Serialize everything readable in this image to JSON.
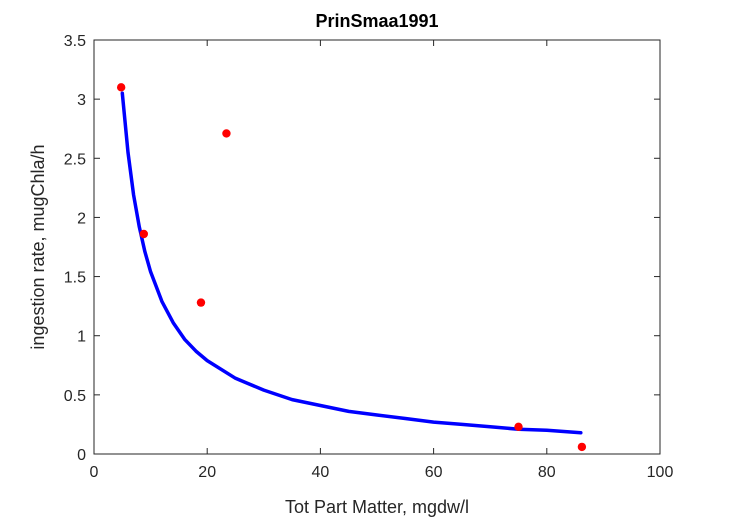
{
  "chart_data": {
    "type": "scatter",
    "title": "PrinSmaa1991",
    "xlabel": "Tot Part Matter, mgdw/l",
    "ylabel": "ingestion rate, mugChla/h",
    "xlim": [
      0,
      100
    ],
    "ylim": [
      0,
      3.5
    ],
    "xticks": [
      0,
      20,
      40,
      60,
      80,
      100
    ],
    "yticks": [
      0,
      0.5,
      1,
      1.5,
      2,
      2.5,
      3,
      3.5
    ],
    "xtick_labels": [
      "0",
      "20",
      "40",
      "60",
      "80",
      "100"
    ],
    "ytick_labels": [
      "0",
      "0.5",
      "1",
      "1.5",
      "2",
      "2.5",
      "3",
      "3.5"
    ],
    "grid": false,
    "series": [
      {
        "kind": "points",
        "color": "#ff0000",
        "x": [
          4.8,
          8.8,
          18.9,
          23.4,
          75.0,
          86.2
        ],
        "y": [
          3.1,
          1.86,
          1.28,
          2.71,
          0.23,
          0.06
        ]
      },
      {
        "kind": "line",
        "color": "#0000ff",
        "x": [
          5,
          6,
          7,
          8,
          9,
          10,
          12,
          14,
          16,
          18,
          20,
          25,
          30,
          35,
          40,
          45,
          50,
          55,
          60,
          65,
          70,
          75,
          80,
          86
        ],
        "y": [
          3.05,
          2.55,
          2.19,
          1.92,
          1.71,
          1.54,
          1.29,
          1.11,
          0.97,
          0.87,
          0.79,
          0.64,
          0.54,
          0.46,
          0.41,
          0.36,
          0.33,
          0.3,
          0.27,
          0.25,
          0.23,
          0.21,
          0.2,
          0.18
        ]
      }
    ]
  }
}
